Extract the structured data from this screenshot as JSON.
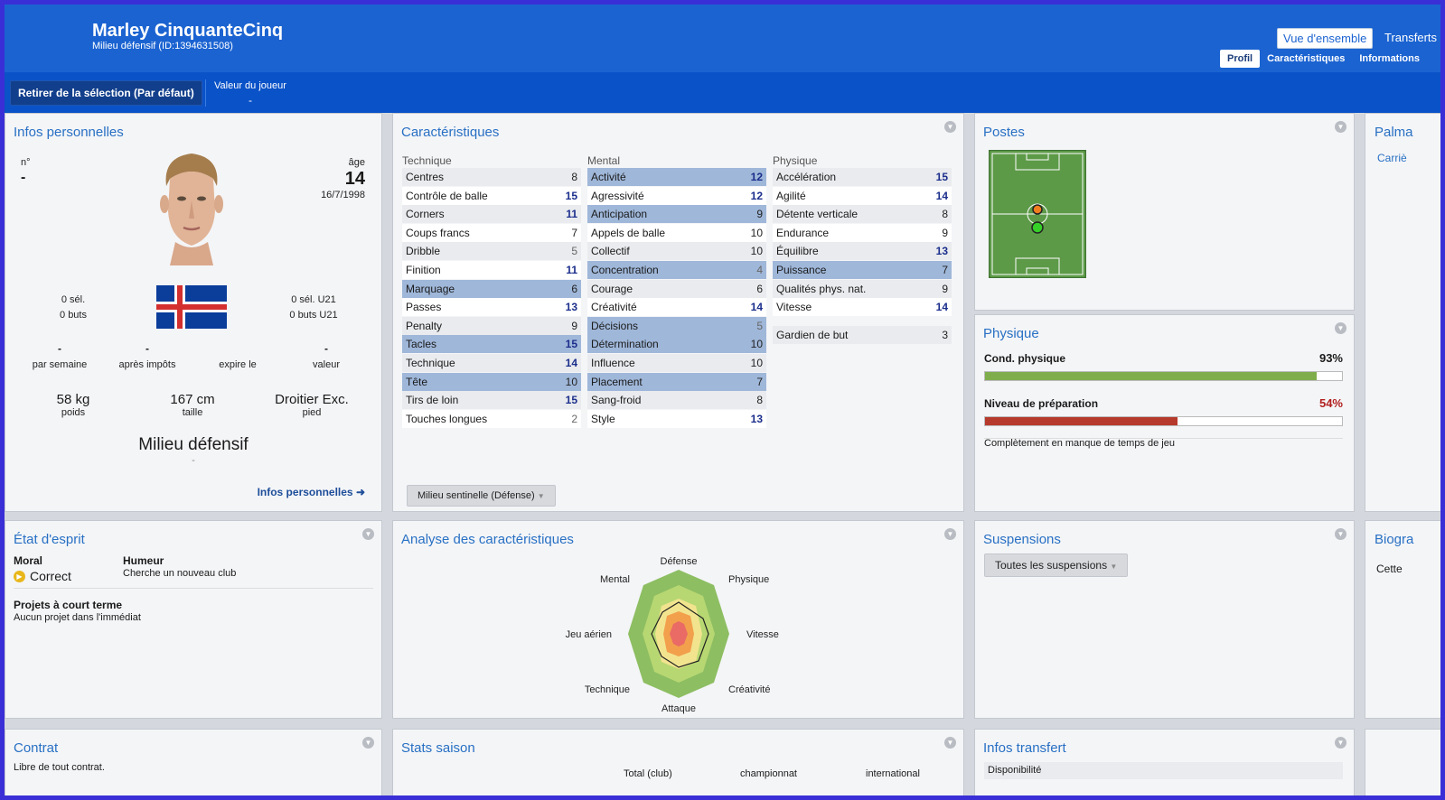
{
  "header": {
    "player_name": "Marley CinquanteCinq",
    "player_subtitle": "Milieu défensif (ID:1394631508)",
    "overview_button": "Vue d'ensemble",
    "transfers_link": "Transferts",
    "tabs": [
      {
        "label": "Profil",
        "active": true
      },
      {
        "label": "Caractéristiques",
        "active": false
      },
      {
        "label": "Informations",
        "active": false
      }
    ]
  },
  "toolbar": {
    "deselect_button": "Retirer de la sélection (Par défaut)",
    "player_value_label": "Valeur du joueur",
    "player_value": "-"
  },
  "personal": {
    "title": "Infos personnelles",
    "number_label": "n°",
    "number_value": "-",
    "age_label": "âge",
    "age_value": "14",
    "birthdate": "16/7/1998",
    "caps": "0 sél.",
    "goals": "0 buts",
    "caps_u21": "0 sél. U21",
    "goals_u21": "0 buts U21",
    "wage_value": "-",
    "wage_label": "par semaine",
    "after_tax_value": "-",
    "after_tax_label": "après impôts",
    "expires_label": "expire le",
    "value_value": "-",
    "value_label": "valeur",
    "weight_value": "58 kg",
    "weight_label": "poids",
    "height_value": "167 cm",
    "height_label": "taille",
    "foot_value": "Droitier Exc.",
    "foot_label": "pied",
    "position": "Milieu défensif",
    "position_sub": "-",
    "link": "Infos personnelles"
  },
  "attributes": {
    "title": "Caractéristiques",
    "technical_header": "Technique",
    "mental_header": "Mental",
    "physical_header": "Physique",
    "technical": [
      {
        "name": "Centres",
        "value": "8",
        "hl": false,
        "tone": "mid"
      },
      {
        "name": "Contrôle de balle",
        "value": "15",
        "hl": false,
        "tone": "hi"
      },
      {
        "name": "Corners",
        "value": "11",
        "hl": false,
        "tone": "hi"
      },
      {
        "name": "Coups francs",
        "value": "7",
        "hl": false,
        "tone": "mid"
      },
      {
        "name": "Dribble",
        "value": "5",
        "hl": false,
        "tone": "lo"
      },
      {
        "name": "Finition",
        "value": "11",
        "hl": false,
        "tone": "hi"
      },
      {
        "name": "Marquage",
        "value": "6",
        "hl": true,
        "tone": "mid"
      },
      {
        "name": "Passes",
        "value": "13",
        "hl": false,
        "tone": "hi"
      },
      {
        "name": "Penalty",
        "value": "9",
        "hl": false,
        "tone": "mid"
      },
      {
        "name": "Tacles",
        "value": "15",
        "hl": true,
        "tone": "hi"
      },
      {
        "name": "Technique",
        "value": "14",
        "hl": false,
        "tone": "hi"
      },
      {
        "name": "Tête",
        "value": "10",
        "hl": true,
        "tone": "mid"
      },
      {
        "name": "Tirs de loin",
        "value": "15",
        "hl": false,
        "tone": "hi"
      },
      {
        "name": "Touches longues",
        "value": "2",
        "hl": false,
        "tone": "lo"
      }
    ],
    "mental": [
      {
        "name": "Activité",
        "value": "12",
        "hl": true,
        "tone": "hi"
      },
      {
        "name": "Agressivité",
        "value": "12",
        "hl": false,
        "tone": "hi"
      },
      {
        "name": "Anticipation",
        "value": "9",
        "hl": true,
        "tone": "mid"
      },
      {
        "name": "Appels de balle",
        "value": "10",
        "hl": false,
        "tone": "mid"
      },
      {
        "name": "Collectif",
        "value": "10",
        "hl": false,
        "tone": "mid"
      },
      {
        "name": "Concentration",
        "value": "4",
        "hl": true,
        "tone": "lo"
      },
      {
        "name": "Courage",
        "value": "6",
        "hl": false,
        "tone": "mid"
      },
      {
        "name": "Créativité",
        "value": "14",
        "hl": false,
        "tone": "hi"
      },
      {
        "name": "Décisions",
        "value": "5",
        "hl": true,
        "tone": "lo"
      },
      {
        "name": "Détermination",
        "value": "10",
        "hl": true,
        "tone": "mid"
      },
      {
        "name": "Influence",
        "value": "10",
        "hl": false,
        "tone": "mid"
      },
      {
        "name": "Placement",
        "value": "7",
        "hl": true,
        "tone": "mid"
      },
      {
        "name": "Sang-froid",
        "value": "8",
        "hl": false,
        "tone": "mid"
      },
      {
        "name": "Style",
        "value": "13",
        "hl": false,
        "tone": "hi"
      }
    ],
    "physical": [
      {
        "name": "Accélération",
        "value": "15",
        "hl": false,
        "tone": "hi"
      },
      {
        "name": "Agilité",
        "value": "14",
        "hl": false,
        "tone": "hi"
      },
      {
        "name": "Détente verticale",
        "value": "8",
        "hl": false,
        "tone": "mid"
      },
      {
        "name": "Endurance",
        "value": "9",
        "hl": false,
        "tone": "mid"
      },
      {
        "name": "Équilibre",
        "value": "13",
        "hl": false,
        "tone": "hi"
      },
      {
        "name": "Puissance",
        "value": "7",
        "hl": true,
        "tone": "mid"
      },
      {
        "name": "Qualités phys. nat.",
        "value": "9",
        "hl": false,
        "tone": "mid"
      },
      {
        "name": "Vitesse",
        "value": "14",
        "hl": false,
        "tone": "hi"
      }
    ],
    "goalkeeper": {
      "name": "Gardien de but",
      "value": "3"
    },
    "role_button": "Milieu sentinelle (Défense)"
  },
  "positions": {
    "title": "Postes"
  },
  "physical_panel": {
    "title": "Physique",
    "condition_label": "Cond. physique",
    "condition_value": "93%",
    "condition_level": 0.93,
    "sharpness_label": "Niveau de préparation",
    "sharpness_value": "54%",
    "sharpness_level": 0.54,
    "note": "Complètement en manque de temps de jeu",
    "colors": {
      "condition": "#7fad4c",
      "sharpness": "#b63a2b"
    }
  },
  "right_col": {
    "title1": "Palma",
    "link1": "Carriè",
    "title2": "Biogra",
    "text2": "Cette"
  },
  "mood": {
    "title": "État d'esprit",
    "morale_label": "Moral",
    "morale_value": "Correct",
    "humeur_label": "Humeur",
    "humeur_value": "Cherche un nouveau club",
    "plans_label": "Projets à court terme",
    "plans_value": "Aucun projet dans l'immédiat"
  },
  "analysis": {
    "title": "Analyse des caractéristiques",
    "axes": [
      "Défense",
      "Physique",
      "Vitesse",
      "Créativité",
      "Attaque",
      "Technique",
      "Jeu aérien",
      "Mental"
    ]
  },
  "suspensions": {
    "title": "Suspensions",
    "button": "Toutes les suspensions"
  },
  "contract": {
    "title": "Contrat",
    "text": "Libre de tout contrat."
  },
  "season": {
    "title": "Stats saison",
    "col1": "Total (club)",
    "col2": "championnat",
    "col3": "international"
  },
  "transfer": {
    "title": "Infos transfert",
    "availability": "Disponibilité"
  }
}
